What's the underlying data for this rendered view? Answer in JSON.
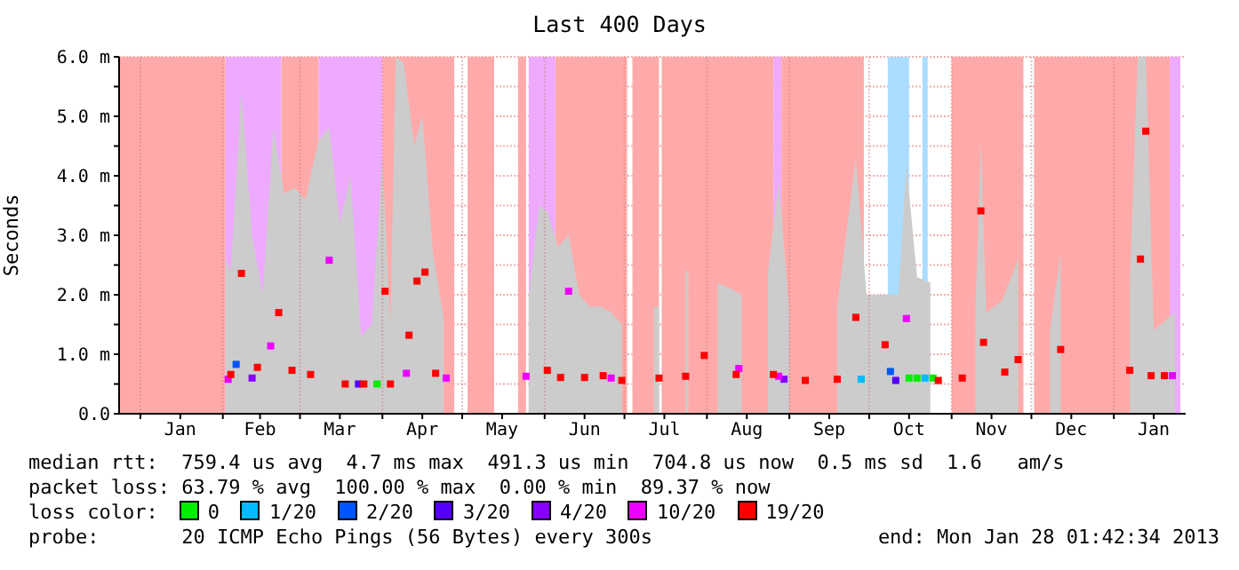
{
  "chart_data": {
    "type": "scatter",
    "title": "Last 400 Days",
    "ylabel": "Seconds",
    "legend_title": "loss color:",
    "legend": "bottom",
    "marker": "square",
    "grid": true,
    "xlim": [
      "2011-12-24",
      "2013-01-28"
    ],
    "xticks": [
      {
        "value": "2012-01-01",
        "label": null
      },
      {
        "value": "2012-01-16",
        "label": "Jan"
      },
      {
        "value": "2012-02-01",
        "label": null
      },
      {
        "value": "2012-02-15",
        "label": "Feb"
      },
      {
        "value": "2012-03-01",
        "label": null
      },
      {
        "value": "2012-03-16",
        "label": "Mar"
      },
      {
        "value": "2012-04-01",
        "label": null
      },
      {
        "value": "2012-04-16",
        "label": "Apr"
      },
      {
        "value": "2012-05-01",
        "label": null
      },
      {
        "value": "2012-05-16",
        "label": "May"
      },
      {
        "value": "2012-06-01",
        "label": null
      },
      {
        "value": "2012-06-16",
        "label": "Jun"
      },
      {
        "value": "2012-07-01",
        "label": null
      },
      {
        "value": "2012-07-16",
        "label": "Jul"
      },
      {
        "value": "2012-08-01",
        "label": null
      },
      {
        "value": "2012-08-16",
        "label": "Aug"
      },
      {
        "value": "2012-09-01",
        "label": null
      },
      {
        "value": "2012-09-16",
        "label": "Sep"
      },
      {
        "value": "2012-10-01",
        "label": null
      },
      {
        "value": "2012-10-16",
        "label": "Oct"
      },
      {
        "value": "2012-11-01",
        "label": null
      },
      {
        "value": "2012-11-16",
        "label": "Nov"
      },
      {
        "value": "2012-12-01",
        "label": null
      },
      {
        "value": "2012-12-16",
        "label": "Dec"
      },
      {
        "value": "2013-01-01",
        "label": null
      },
      {
        "value": "2013-01-16",
        "label": "Jan"
      }
    ],
    "ylim": [
      0,
      6
    ],
    "yticks": [
      {
        "value": 0,
        "label": "0.0"
      },
      {
        "value": 0.5,
        "label": null
      },
      {
        "value": 1,
        "label": "1.0 m"
      },
      {
        "value": 1.5,
        "label": null
      },
      {
        "value": 2,
        "label": "2.0 m"
      },
      {
        "value": 2.5,
        "label": null
      },
      {
        "value": 3,
        "label": "3.0 m"
      },
      {
        "value": 3.5,
        "label": null
      },
      {
        "value": 4,
        "label": "4.0 m"
      },
      {
        "value": 4.5,
        "label": null
      },
      {
        "value": 5,
        "label": "5.0 m"
      },
      {
        "value": 5.5,
        "label": null
      },
      {
        "value": 6,
        "label": "6.0 m"
      }
    ],
    "bands": [
      {
        "axis": "x",
        "from": "2011-12-24",
        "to": "2012-02-02",
        "color": "#ffaaaa"
      },
      {
        "axis": "x",
        "from": "2012-02-02",
        "to": "2012-02-23",
        "color": "#eeaaff"
      },
      {
        "axis": "x",
        "from": "2012-02-23",
        "to": "2012-03-08",
        "color": "#ffaaaa"
      },
      {
        "axis": "x",
        "from": "2012-03-08",
        "to": "2012-04-01",
        "color": "#eeaaff"
      },
      {
        "axis": "x",
        "from": "2012-04-01",
        "to": "2012-04-28",
        "color": "#ffaaaa"
      },
      {
        "axis": "x",
        "from": "2012-05-03",
        "to": "2012-05-13",
        "color": "#ffaaaa"
      },
      {
        "axis": "x",
        "from": "2012-05-22",
        "to": "2012-05-25",
        "color": "#ffaaaa"
      },
      {
        "axis": "x",
        "from": "2012-05-26",
        "to": "2012-06-05",
        "color": "#eeaaff"
      },
      {
        "axis": "x",
        "from": "2012-06-05",
        "to": "2012-07-02",
        "color": "#ffaaaa"
      },
      {
        "axis": "x",
        "from": "2012-07-04",
        "to": "2012-07-14",
        "color": "#ffaaaa"
      },
      {
        "axis": "x",
        "from": "2012-07-15",
        "to": "2012-08-26",
        "color": "#ffaaaa"
      },
      {
        "axis": "x",
        "from": "2012-08-26",
        "to": "2012-08-29",
        "color": "#eeaaff"
      },
      {
        "axis": "x",
        "from": "2012-08-29",
        "to": "2012-09-29",
        "color": "#ffaaaa"
      },
      {
        "axis": "x",
        "from": "2012-10-08",
        "to": "2012-10-16",
        "color": "#aaddff"
      },
      {
        "axis": "x",
        "from": "2012-10-21",
        "to": "2012-10-23",
        "color": "#aaddff"
      },
      {
        "axis": "x",
        "from": "2012-11-01",
        "to": "2012-11-28",
        "color": "#ffaaaa"
      },
      {
        "axis": "x",
        "from": "2012-12-02",
        "to": "2013-01-22",
        "color": "#ffaaaa"
      },
      {
        "axis": "x",
        "from": "2013-01-22",
        "to": "2013-01-26",
        "color": "#eeaaff"
      }
    ],
    "series": [
      {
        "type": "area",
        "marker": "none",
        "color": "#cccccc",
        "x": [
          "2012-02-02",
          "2012-02-04",
          "2012-02-08",
          "2012-02-12",
          "2012-02-16",
          "2012-02-20",
          "2012-02-24",
          "2012-02-28",
          "2012-03-03",
          "2012-03-08",
          "2012-03-12",
          "2012-03-16",
          "2012-03-20",
          "2012-03-24",
          "2012-03-28",
          "2012-04-01",
          "2012-04-04",
          "2012-04-06",
          "2012-04-09",
          "2012-04-13",
          "2012-04-16",
          "2012-04-20",
          "2012-04-24",
          "2012-04-27",
          "2012-05-26",
          "2012-05-30",
          "2012-06-02",
          "2012-06-06",
          "2012-06-10",
          "2012-06-14",
          "2012-06-18",
          "2012-06-22",
          "2012-06-26",
          "2012-06-30",
          "2012-07-02",
          "2012-07-12",
          "2012-07-14",
          "2012-07-16",
          "2012-07-24",
          "2012-07-25",
          "2012-07-28",
          "2012-08-05",
          "2012-08-10",
          "2012-08-14",
          "2012-08-20",
          "2012-08-24",
          "2012-08-28",
          "2012-09-01",
          "2012-09-05",
          "2012-09-19",
          "2012-09-26",
          "2012-09-30",
          "2012-10-07",
          "2012-10-12",
          "2012-10-15",
          "2012-10-19",
          "2012-10-24",
          "2012-10-28",
          "2012-11-10",
          "2012-11-12",
          "2012-11-14",
          "2012-11-20",
          "2012-11-26",
          "2012-11-30",
          "2012-12-08",
          "2012-12-12",
          "2012-12-14",
          "2013-01-07",
          "2013-01-10",
          "2013-01-13",
          "2013-01-16",
          "2013-01-24"
        ],
        "values": [
          2.6,
          2.4,
          5.4,
          3.0,
          2.0,
          4.8,
          3.7,
          3.8,
          3.6,
          4.6,
          4.8,
          3.2,
          4.0,
          1.3,
          1.5,
          4.3,
          1.5,
          6.0,
          5.9,
          4.5,
          5.0,
          2.7,
          1.6,
          null,
          2.0,
          3.5,
          3.4,
          2.8,
          3.0,
          2.0,
          1.8,
          1.8,
          1.7,
          1.5,
          null,
          1.8,
          1.8,
          null,
          2.4,
          2.4,
          null,
          2.2,
          2.1,
          2.0,
          null,
          2.4,
          3.9,
          1.7,
          null,
          1.8,
          4.3,
          2.0,
          2.0,
          2.0,
          4.2,
          2.3,
          2.2,
          null,
          1.8,
          4.6,
          1.7,
          1.9,
          2.6,
          null,
          1.4,
          2.7,
          null,
          2.2,
          6.0,
          6.0,
          1.4,
          1.7
        ]
      },
      {
        "name": "0",
        "color": "#00ee00",
        "x": [
          "2012-03-30",
          "2012-10-16",
          "2012-10-19",
          "2012-10-25"
        ],
        "values": [
          0.5,
          0.6,
          0.6,
          0.6
        ]
      },
      {
        "name": "1/20",
        "color": "#00bbff",
        "x": [
          "2012-09-28",
          "2012-10-22"
        ],
        "values": [
          0.58,
          0.6
        ]
      },
      {
        "name": "2/20",
        "color": "#0055ff",
        "x": [
          "2012-02-06",
          "2012-10-09"
        ],
        "values": [
          0.83,
          0.71
        ]
      },
      {
        "name": "3/20",
        "color": "#5500ff",
        "x": [
          "2012-03-23",
          "2012-10-11"
        ],
        "values": [
          0.5,
          0.56
        ]
      },
      {
        "name": "4/20",
        "color": "#8800ff",
        "x": [
          "2012-02-12",
          "2012-08-30"
        ],
        "values": [
          0.6,
          0.58
        ]
      },
      {
        "name": "10/20",
        "color": "#ee00ff",
        "x": [
          "2012-02-03",
          "2012-02-19",
          "2012-03-12",
          "2012-04-10",
          "2012-04-25",
          "2012-05-25",
          "2012-06-10",
          "2012-06-26",
          "2012-08-13",
          "2012-08-28",
          "2012-10-15",
          "2013-01-23"
        ],
        "values": [
          0.58,
          1.14,
          2.58,
          0.68,
          0.6,
          0.63,
          2.06,
          0.6,
          0.76,
          0.63,
          1.6,
          0.64
        ]
      },
      {
        "name": "19/20",
        "color": "#ff0000",
        "x": [
          "2012-02-04",
          "2012-02-08",
          "2012-02-14",
          "2012-02-22",
          "2012-02-27",
          "2012-03-05",
          "2012-03-18",
          "2012-03-25",
          "2012-04-02",
          "2012-04-04",
          "2012-04-11",
          "2012-04-14",
          "2012-04-17",
          "2012-04-21",
          "2012-06-02",
          "2012-06-07",
          "2012-06-16",
          "2012-06-23",
          "2012-06-30",
          "2012-07-14",
          "2012-07-24",
          "2012-07-31",
          "2012-08-12",
          "2012-08-26",
          "2012-09-07",
          "2012-09-19",
          "2012-09-26",
          "2012-10-07",
          "2012-10-27",
          "2012-11-05",
          "2012-11-12",
          "2012-11-13",
          "2012-11-21",
          "2012-11-26",
          "2012-12-12",
          "2013-01-07",
          "2013-01-11",
          "2013-01-13",
          "2013-01-15",
          "2013-01-20"
        ],
        "values": [
          0.66,
          2.36,
          0.78,
          1.7,
          0.73,
          0.66,
          0.5,
          0.5,
          2.06,
          0.5,
          1.32,
          2.23,
          2.38,
          0.68,
          0.73,
          0.61,
          0.61,
          0.64,
          0.56,
          0.6,
          0.63,
          0.98,
          0.66,
          0.66,
          0.56,
          0.58,
          1.62,
          1.16,
          0.56,
          0.6,
          3.41,
          1.2,
          0.7,
          0.91,
          1.08,
          0.73,
          2.6,
          4.75,
          0.64,
          0.64
        ]
      }
    ],
    "annotations": [
      "median rtt:  759.4 us avg  4.7 ms max  491.3 us min  704.8 us now  0.5 ms sd  1.6   am/s",
      "packet loss: 63.79 % avg  100.00 % max  0.00 % min  89.37 % now",
      "probe:       20 ICMP Echo Pings (56 Bytes) every 300s",
      "end: Mon Jan 28 01:42:34 2013"
    ]
  }
}
